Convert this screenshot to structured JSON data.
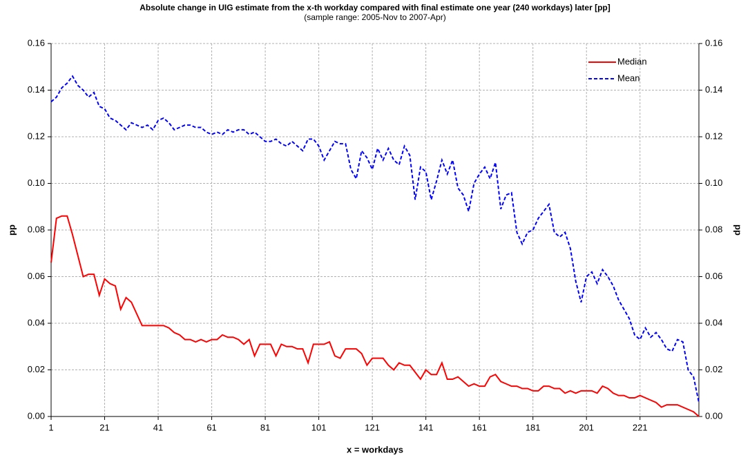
{
  "chart_data": {
    "type": "line",
    "title": "Absolute change in UIG estimate from the x-th workday compared with final estimate one year (240 workdays) later [pp]",
    "subtitle": "(sample range:  2005-Nov  to 2007-Apr)",
    "x_label": "x = workdays",
    "y_label": "pp",
    "y2_label": "pp",
    "x": [
      1,
      3,
      5,
      7,
      9,
      11,
      13,
      15,
      17,
      19,
      21,
      23,
      25,
      27,
      29,
      31,
      33,
      35,
      37,
      39,
      41,
      43,
      45,
      47,
      49,
      51,
      53,
      55,
      57,
      59,
      61,
      63,
      65,
      67,
      69,
      71,
      73,
      75,
      77,
      79,
      81,
      83,
      85,
      87,
      89,
      91,
      93,
      95,
      97,
      99,
      101,
      103,
      105,
      107,
      109,
      111,
      113,
      115,
      117,
      119,
      121,
      123,
      125,
      127,
      129,
      131,
      133,
      135,
      137,
      139,
      141,
      143,
      145,
      147,
      149,
      151,
      153,
      155,
      157,
      159,
      161,
      163,
      165,
      167,
      169,
      171,
      173,
      175,
      177,
      179,
      181,
      183,
      185,
      187,
      189,
      191,
      193,
      195,
      197,
      199,
      201,
      203,
      205,
      207,
      209,
      211,
      213,
      215,
      217,
      219,
      221,
      223,
      225,
      227,
      229,
      231,
      233,
      235,
      237,
      239,
      241,
      243
    ],
    "series": [
      {
        "name": "Median",
        "color": "#ff0000",
        "line_style": "solid",
        "values": [
          0.066,
          0.085,
          0.086,
          0.086,
          0.078,
          0.069,
          0.06,
          0.061,
          0.061,
          0.052,
          0.059,
          0.057,
          0.056,
          0.046,
          0.051,
          0.049,
          0.044,
          0.039,
          0.039,
          0.039,
          0.039,
          0.039,
          0.038,
          0.036,
          0.035,
          0.033,
          0.033,
          0.032,
          0.033,
          0.032,
          0.033,
          0.033,
          0.035,
          0.034,
          0.034,
          0.033,
          0.031,
          0.033,
          0.026,
          0.031,
          0.031,
          0.031,
          0.026,
          0.031,
          0.03,
          0.03,
          0.029,
          0.029,
          0.023,
          0.031,
          0.031,
          0.031,
          0.032,
          0.026,
          0.025,
          0.029,
          0.029,
          0.029,
          0.027,
          0.022,
          0.025,
          0.025,
          0.025,
          0.022,
          0.02,
          0.023,
          0.022,
          0.022,
          0.019,
          0.016,
          0.02,
          0.018,
          0.018,
          0.023,
          0.016,
          0.016,
          0.017,
          0.015,
          0.013,
          0.014,
          0.013,
          0.013,
          0.017,
          0.018,
          0.015,
          0.014,
          0.013,
          0.013,
          0.012,
          0.012,
          0.011,
          0.011,
          0.013,
          0.013,
          0.012,
          0.012,
          0.01,
          0.011,
          0.01,
          0.011,
          0.011,
          0.011,
          0.01,
          0.013,
          0.012,
          0.01,
          0.009,
          0.009,
          0.008,
          0.008,
          0.009,
          0.008,
          0.007,
          0.006,
          0.004,
          0.005,
          0.005,
          0.005,
          0.004,
          0.003,
          0.002,
          0.0
        ]
      },
      {
        "name": "Mean",
        "color": "#0000ff",
        "line_style": "dashed",
        "values": [
          0.135,
          0.137,
          0.141,
          0.143,
          0.146,
          0.142,
          0.14,
          0.137,
          0.139,
          0.133,
          0.132,
          0.128,
          0.127,
          0.125,
          0.123,
          0.126,
          0.125,
          0.124,
          0.125,
          0.123,
          0.127,
          0.128,
          0.126,
          0.123,
          0.124,
          0.125,
          0.125,
          0.124,
          0.124,
          0.122,
          0.121,
          0.122,
          0.121,
          0.123,
          0.122,
          0.123,
          0.123,
          0.121,
          0.122,
          0.12,
          0.118,
          0.118,
          0.119,
          0.117,
          0.116,
          0.118,
          0.116,
          0.114,
          0.119,
          0.119,
          0.116,
          0.11,
          0.114,
          0.118,
          0.117,
          0.117,
          0.106,
          0.102,
          0.114,
          0.111,
          0.106,
          0.115,
          0.11,
          0.115,
          0.11,
          0.108,
          0.116,
          0.112,
          0.093,
          0.107,
          0.105,
          0.093,
          0.101,
          0.11,
          0.104,
          0.11,
          0.098,
          0.095,
          0.088,
          0.1,
          0.104,
          0.107,
          0.102,
          0.109,
          0.089,
          0.095,
          0.096,
          0.079,
          0.074,
          0.079,
          0.08,
          0.085,
          0.088,
          0.091,
          0.079,
          0.077,
          0.079,
          0.072,
          0.058,
          0.049,
          0.06,
          0.062,
          0.057,
          0.063,
          0.06,
          0.056,
          0.05,
          0.046,
          0.042,
          0.035,
          0.033,
          0.038,
          0.034,
          0.036,
          0.033,
          0.029,
          0.028,
          0.033,
          0.032,
          0.02,
          0.017,
          0.006
        ]
      }
    ],
    "xlim": [
      1,
      243
    ],
    "xticks": [
      1,
      21,
      41,
      61,
      81,
      101,
      121,
      141,
      161,
      181,
      201,
      221
    ],
    "ylim": [
      0,
      0.16
    ],
    "yticks": [
      {
        "value": 0,
        "label": "0.00"
      },
      {
        "value": 0.02,
        "label": "0.02"
      },
      {
        "value": 0.04,
        "label": "0.04"
      },
      {
        "value": 0.06,
        "label": "0.06"
      },
      {
        "value": 0.08,
        "label": "0.08"
      },
      {
        "value": 0.1,
        "label": "0.10"
      },
      {
        "value": 0.12,
        "label": "0.12"
      },
      {
        "value": 0.14,
        "label": "0.14"
      },
      {
        "value": 0.16,
        "label": "0.16"
      }
    ],
    "y2lim": [
      0,
      0.16
    ],
    "y2ticks": [
      {
        "value": 0,
        "label": "0.00"
      },
      {
        "value": 0.02,
        "label": "0.02"
      },
      {
        "value": 0.04,
        "label": "0.04"
      },
      {
        "value": 0.06,
        "label": "0.06"
      },
      {
        "value": 0.08,
        "label": "0.08"
      },
      {
        "value": 0.1,
        "label": "0.10"
      },
      {
        "value": 0.12,
        "label": "0.12"
      },
      {
        "value": 0.14,
        "label": "0.14"
      },
      {
        "value": 0.16,
        "label": "0.16"
      }
    ],
    "grid": true,
    "legend": "upper right"
  }
}
